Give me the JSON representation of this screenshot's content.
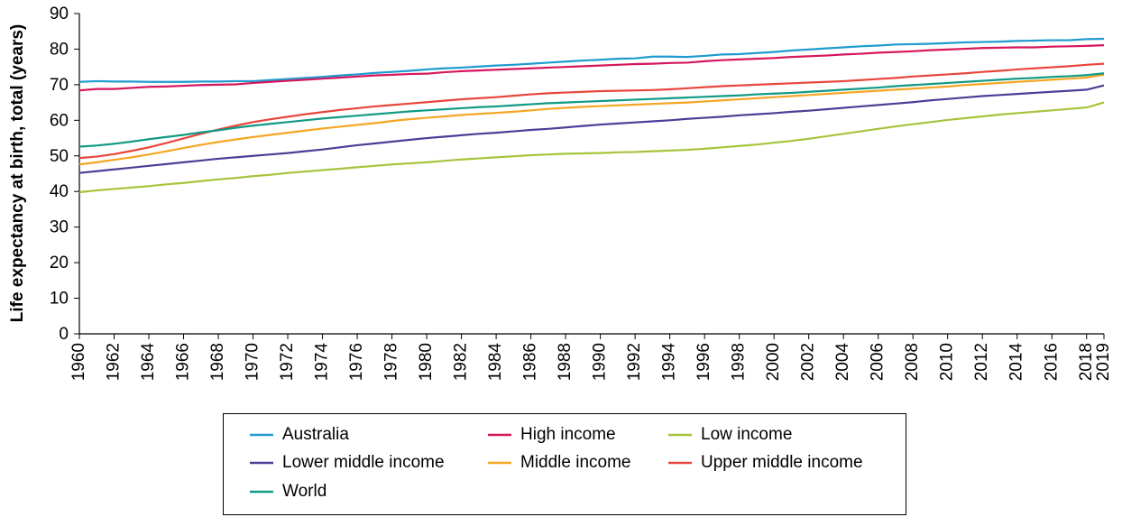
{
  "chart_data": {
    "type": "line",
    "y_label": "Life expectancy at birth, total (years)",
    "x": [
      1960,
      1961,
      1962,
      1963,
      1964,
      1965,
      1966,
      1967,
      1968,
      1969,
      1970,
      1971,
      1972,
      1973,
      1974,
      1975,
      1976,
      1977,
      1978,
      1979,
      1980,
      1981,
      1982,
      1983,
      1984,
      1985,
      1986,
      1987,
      1988,
      1989,
      1990,
      1991,
      1992,
      1993,
      1994,
      1995,
      1996,
      1997,
      1998,
      1999,
      2000,
      2001,
      2002,
      2003,
      2004,
      2005,
      2006,
      2007,
      2008,
      2009,
      2010,
      2011,
      2012,
      2013,
      2014,
      2015,
      2016,
      2017,
      2018,
      2019
    ],
    "xlim": [
      1960,
      2019
    ],
    "xticks": [
      1960,
      1962,
      1964,
      1966,
      1968,
      1970,
      1972,
      1974,
      1976,
      1978,
      1980,
      1982,
      1984,
      1986,
      1988,
      1990,
      1992,
      1994,
      1996,
      1998,
      2000,
      2002,
      2004,
      2006,
      2008,
      2010,
      2012,
      2014,
      2016,
      2018,
      2019
    ],
    "ylim": [
      0,
      90
    ],
    "yticks": [
      0,
      10,
      20,
      30,
      40,
      50,
      60,
      70,
      80,
      90
    ],
    "grid": false,
    "legend": "bottom",
    "series": [
      {
        "name": "Australia",
        "color": "#1f9bcf",
        "values": [
          70.8,
          71.0,
          70.9,
          70.9,
          70.8,
          70.8,
          70.8,
          70.9,
          70.9,
          71.0,
          71.0,
          71.3,
          71.6,
          71.9,
          72.2,
          72.6,
          72.9,
          73.3,
          73.6,
          73.9,
          74.3,
          74.6,
          74.8,
          75.1,
          75.4,
          75.6,
          75.9,
          76.2,
          76.5,
          76.8,
          77.0,
          77.3,
          77.4,
          77.9,
          77.9,
          77.8,
          78.1,
          78.5,
          78.6,
          78.9,
          79.2,
          79.6,
          79.9,
          80.2,
          80.5,
          80.8,
          81.0,
          81.3,
          81.4,
          81.5,
          81.7,
          81.9,
          82.0,
          82.1,
          82.3,
          82.4,
          82.5,
          82.5,
          82.8,
          82.9
        ]
      },
      {
        "name": "High income",
        "color": "#d6165d",
        "values": [
          68.4,
          68.8,
          68.8,
          69.1,
          69.4,
          69.5,
          69.7,
          69.9,
          70.0,
          70.1,
          70.5,
          70.8,
          71.1,
          71.4,
          71.7,
          72.0,
          72.3,
          72.6,
          72.8,
          73.0,
          73.1,
          73.5,
          73.8,
          74.0,
          74.2,
          74.4,
          74.6,
          74.8,
          75.0,
          75.2,
          75.4,
          75.6,
          75.8,
          75.9,
          76.1,
          76.2,
          76.6,
          76.9,
          77.1,
          77.3,
          77.5,
          77.8,
          78.0,
          78.2,
          78.5,
          78.7,
          79.0,
          79.2,
          79.4,
          79.7,
          79.9,
          80.1,
          80.3,
          80.4,
          80.5,
          80.5,
          80.7,
          80.8,
          80.9,
          81.1
        ]
      },
      {
        "name": "Low income",
        "color": "#a6c43a",
        "values": [
          39.8,
          40.3,
          40.7,
          41.1,
          41.5,
          42.0,
          42.4,
          42.9,
          43.4,
          43.8,
          44.3,
          44.7,
          45.2,
          45.6,
          46.0,
          46.4,
          46.8,
          47.2,
          47.6,
          47.9,
          48.2,
          48.6,
          49.0,
          49.3,
          49.6,
          49.9,
          50.2,
          50.4,
          50.6,
          50.7,
          50.8,
          51.0,
          51.1,
          51.3,
          51.5,
          51.7,
          52.0,
          52.4,
          52.8,
          53.2,
          53.7,
          54.2,
          54.8,
          55.5,
          56.2,
          56.9,
          57.6,
          58.3,
          58.9,
          59.5,
          60.1,
          60.6,
          61.1,
          61.6,
          62.0,
          62.4,
          62.8,
          63.2,
          63.6,
          65.0
        ]
      },
      {
        "name": "Lower middle income",
        "color": "#4e3d96",
        "values": [
          45.2,
          45.7,
          46.2,
          46.7,
          47.2,
          47.7,
          48.2,
          48.7,
          49.2,
          49.6,
          50.0,
          50.4,
          50.8,
          51.3,
          51.8,
          52.4,
          53.0,
          53.5,
          54.0,
          54.5,
          55.0,
          55.4,
          55.8,
          56.2,
          56.5,
          56.9,
          57.3,
          57.6,
          58.0,
          58.4,
          58.8,
          59.1,
          59.4,
          59.7,
          60.0,
          60.4,
          60.7,
          61.0,
          61.4,
          61.7,
          62.0,
          62.4,
          62.7,
          63.1,
          63.5,
          63.9,
          64.3,
          64.7,
          65.1,
          65.6,
          66.0,
          66.4,
          66.8,
          67.1,
          67.4,
          67.7,
          68.0,
          68.3,
          68.6,
          69.8
        ]
      },
      {
        "name": "Middle income",
        "color": "#f5a623",
        "values": [
          47.6,
          48.2,
          48.9,
          49.6,
          50.4,
          51.3,
          52.2,
          53.1,
          53.9,
          54.6,
          55.3,
          55.9,
          56.5,
          57.1,
          57.7,
          58.2,
          58.7,
          59.2,
          59.8,
          60.3,
          60.7,
          61.1,
          61.5,
          61.8,
          62.1,
          62.4,
          62.8,
          63.2,
          63.5,
          63.8,
          64.0,
          64.2,
          64.4,
          64.6,
          64.8,
          65.0,
          65.3,
          65.6,
          65.9,
          66.2,
          66.5,
          66.8,
          67.1,
          67.4,
          67.7,
          68.0,
          68.3,
          68.6,
          68.9,
          69.2,
          69.5,
          69.9,
          70.2,
          70.5,
          70.8,
          71.1,
          71.4,
          71.7,
          72.0,
          72.8
        ]
      },
      {
        "name": "Upper middle income",
        "color": "#e8463c",
        "values": [
          49.4,
          49.8,
          50.5,
          51.4,
          52.4,
          53.6,
          54.9,
          56.2,
          57.4,
          58.5,
          59.5,
          60.3,
          61.0,
          61.7,
          62.3,
          62.9,
          63.4,
          63.9,
          64.3,
          64.7,
          65.1,
          65.5,
          65.9,
          66.2,
          66.5,
          66.9,
          67.3,
          67.6,
          67.8,
          68.0,
          68.2,
          68.3,
          68.4,
          68.5,
          68.7,
          69.0,
          69.3,
          69.6,
          69.8,
          70.0,
          70.2,
          70.4,
          70.6,
          70.8,
          71.0,
          71.3,
          71.6,
          71.9,
          72.3,
          72.6,
          72.9,
          73.2,
          73.6,
          73.9,
          74.3,
          74.6,
          74.9,
          75.2,
          75.6,
          75.9
        ]
      },
      {
        "name": "World",
        "color": "#119a84",
        "values": [
          52.6,
          52.9,
          53.4,
          54.0,
          54.7,
          55.3,
          55.9,
          56.6,
          57.2,
          57.9,
          58.5,
          59.0,
          59.5,
          60.0,
          60.5,
          60.9,
          61.3,
          61.7,
          62.1,
          62.5,
          62.8,
          63.1,
          63.4,
          63.7,
          63.9,
          64.2,
          64.5,
          64.8,
          65.0,
          65.2,
          65.4,
          65.6,
          65.8,
          66.0,
          66.2,
          66.4,
          66.6,
          66.8,
          67.0,
          67.3,
          67.5,
          67.7,
          68.0,
          68.3,
          68.6,
          68.9,
          69.2,
          69.6,
          69.9,
          70.2,
          70.5,
          70.8,
          71.1,
          71.4,
          71.7,
          71.9,
          72.2,
          72.4,
          72.7,
          73.2
        ]
      }
    ]
  }
}
